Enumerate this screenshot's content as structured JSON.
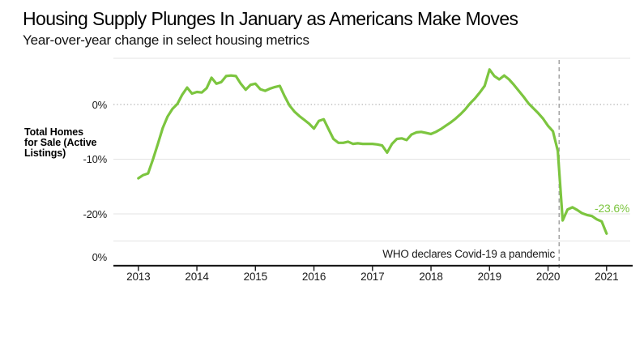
{
  "header": {
    "title": "Housing Supply Plunges In January as Americans Make Moves",
    "subtitle": "Year-over-year change in select housing metrics"
  },
  "chart_data": {
    "type": "line",
    "title": "Housing Supply Plunges In January as Americans Make Moves",
    "subtitle": "Year-over-year change in select housing metrics",
    "series_label": "Total Homes for Sale (Active Listings)",
    "unit": "percent",
    "frequency": "monthly",
    "start": "2013-01",
    "end": "2021-01",
    "xlabel": "",
    "ylabel": "",
    "x_range": [
      2012.9,
      2021.45
    ],
    "ylim": [
      -25,
      8.5
    ],
    "grid": "horizontal",
    "x_tick_labels": [
      "2013",
      "2014",
      "2015",
      "2016",
      "2017",
      "2018",
      "2019",
      "2020",
      "2021"
    ],
    "y_ticks": [
      {
        "label": "0%",
        "value": 0,
        "style": "dotted"
      },
      {
        "label": "-10%",
        "value": -10,
        "style": "solid"
      },
      {
        "label": "-20%",
        "value": -20,
        "style": "solid"
      }
    ],
    "lower_panel_tick_label": "0%",
    "series": [
      {
        "name": "Total Homes for Sale (Active Listings)",
        "values": [
          -13.5,
          -12.9,
          -12.6,
          -10.0,
          -7.2,
          -4.3,
          -2.2,
          -0.8,
          0.1,
          1.8,
          3.1,
          2.0,
          2.3,
          2.2,
          3.0,
          4.9,
          3.8,
          4.1,
          5.2,
          5.3,
          5.2,
          3.8,
          2.7,
          3.6,
          3.8,
          2.8,
          2.5,
          2.9,
          3.2,
          3.4,
          1.5,
          -0.2,
          -1.3,
          -2.1,
          -2.8,
          -3.5,
          -4.4,
          -3.0,
          -2.7,
          -4.5,
          -6.3,
          -7.0,
          -7.0,
          -6.8,
          -7.2,
          -7.1,
          -7.2,
          -7.2,
          -7.2,
          -7.3,
          -7.5,
          -8.8,
          -7.2,
          -6.3,
          -6.2,
          -6.5,
          -5.5,
          -5.1,
          -5.0,
          -5.2,
          -5.4,
          -5.0,
          -4.5,
          -3.9,
          -3.3,
          -2.6,
          -1.8,
          -0.9,
          0.2,
          1.1,
          2.2,
          3.4,
          6.4,
          5.2,
          4.6,
          5.3,
          4.6,
          3.6,
          2.5,
          1.4,
          0.2,
          -0.7,
          -1.6,
          -2.6,
          -3.9,
          -4.9,
          -8.5,
          -21.2,
          -19.2,
          -18.8,
          -19.3,
          -19.9,
          -20.2,
          -20.4,
          -21.0,
          -21.4,
          -23.6
        ]
      }
    ],
    "end_label": "-23.6%",
    "last_value": -23.6,
    "annotation": {
      "text": "WHO declares Covid-19 a pandemic",
      "x_year": 2020.19
    },
    "legend_position": "left",
    "colors": {
      "line": "#7cc53f",
      "end_label": "#7cc53f",
      "grid": "#e3e3e3",
      "zero_dotted": "#b3b3b3",
      "event_line": "#a6a6a6",
      "axis": "#1a1a1a",
      "text": "#000000"
    }
  }
}
